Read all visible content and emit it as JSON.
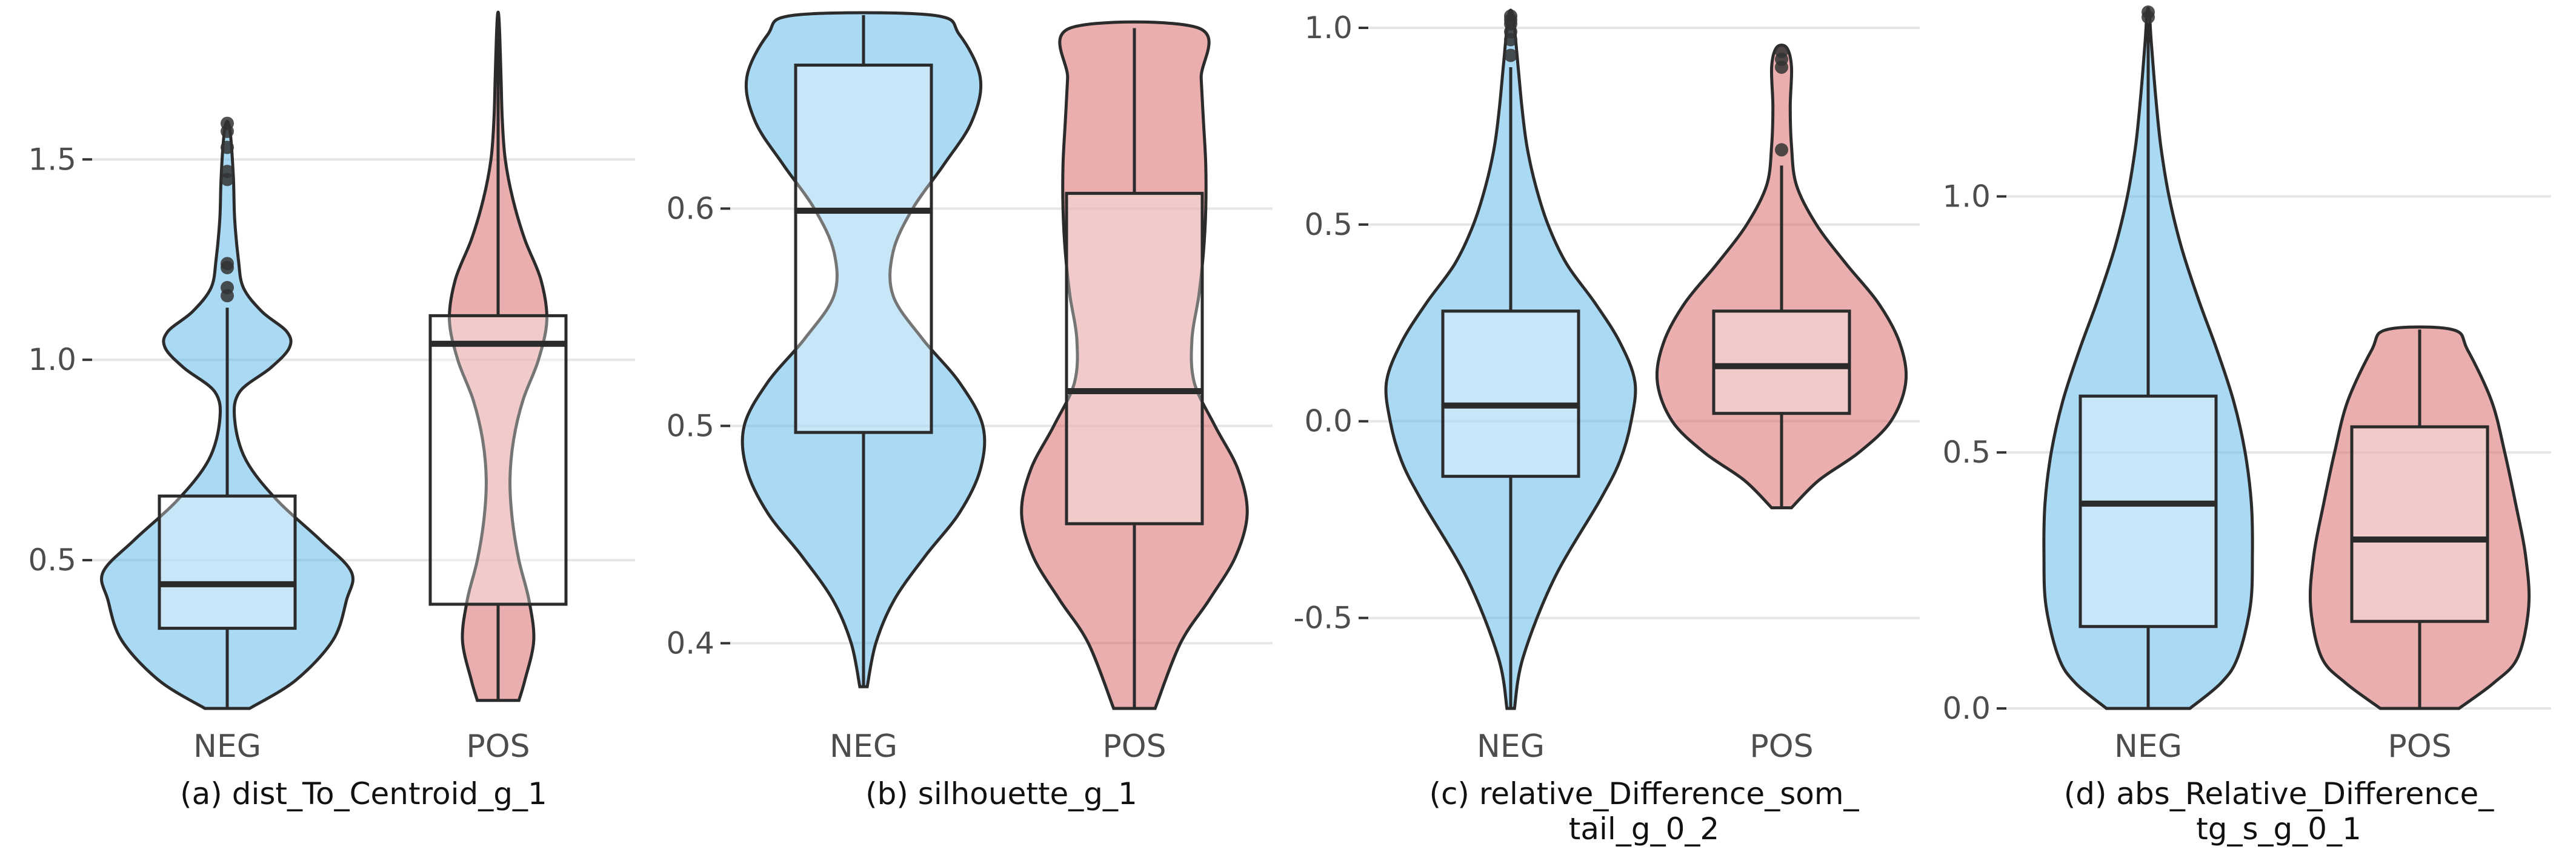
{
  "colors": {
    "neg": "#56B4E9",
    "pos": "#D55E5E",
    "outline": "#2b2b2b",
    "grid": "#e6e6e6",
    "box_fill": "#ffffff"
  },
  "chart_data": [
    {
      "type": "violin",
      "caption_lines": [
        "(a) dist_To_Centroid_g_1"
      ],
      "categories": [
        "NEG",
        "POS"
      ],
      "ylim": [
        0.13,
        1.86
      ],
      "yticks": [
        0.5,
        1.0,
        1.5
      ],
      "ytick_labels": [
        "0.5",
        "1.0",
        "1.5"
      ],
      "grid": true,
      "series": [
        {
          "category": "NEG",
          "box": {
            "q1": 0.33,
            "median": 0.44,
            "q3": 0.66,
            "whisker_low": 0.13,
            "whisker_high": 1.13
          },
          "outliers": [
            1.16,
            1.18,
            1.23,
            1.24,
            1.45,
            1.47,
            1.53,
            1.57,
            1.59
          ],
          "density": {
            "y": [
              0.13,
              0.2,
              0.3,
              0.4,
              0.47,
              0.55,
              0.65,
              0.75,
              0.85,
              0.92,
              0.98,
              1.03,
              1.07,
              1.12,
              1.18,
              1.25,
              1.35,
              1.45,
              1.55,
              1.59
            ],
            "w": [
              0.18,
              0.55,
              0.85,
              0.96,
              1.0,
              0.75,
              0.4,
              0.15,
              0.06,
              0.1,
              0.35,
              0.5,
              0.48,
              0.28,
              0.13,
              0.09,
              0.06,
              0.05,
              0.03,
              0.01
            ]
          }
        },
        {
          "category": "POS",
          "box": {
            "q1": 0.39,
            "median": 1.04,
            "q3": 1.11,
            "whisker_low": 0.15,
            "whisker_high": 1.86
          },
          "outliers": [],
          "density": {
            "y": [
              0.15,
              0.2,
              0.3,
              0.4,
              0.5,
              0.6,
              0.7,
              0.8,
              0.9,
              1.0,
              1.1,
              1.2,
              1.3,
              1.4,
              1.5,
              1.6,
              1.7,
              1.8,
              1.86
            ],
            "w": [
              0.35,
              0.45,
              0.6,
              0.52,
              0.35,
              0.24,
              0.2,
              0.26,
              0.42,
              0.68,
              0.82,
              0.72,
              0.45,
              0.25,
              0.12,
              0.07,
              0.05,
              0.03,
              0.01
            ]
          }
        }
      ]
    },
    {
      "type": "violin",
      "caption_lines": [
        "(b) silhouette_g_1"
      ],
      "categories": [
        "NEG",
        "POS"
      ],
      "ylim": [
        0.37,
        0.689
      ],
      "yticks": [
        0.4,
        0.5,
        0.6
      ],
      "ytick_labels": [
        "0.4",
        "0.5",
        "0.6"
      ],
      "grid": true,
      "series": [
        {
          "category": "NEG",
          "box": {
            "q1": 0.497,
            "median": 0.599,
            "q3": 0.666,
            "whisker_low": 0.38,
            "whisker_high": 0.689
          },
          "outliers": [],
          "density": {
            "y": [
              0.38,
              0.4,
              0.42,
              0.44,
              0.46,
              0.48,
              0.5,
              0.52,
              0.54,
              0.56,
              0.58,
              0.6,
              0.62,
              0.64,
              0.66,
              0.68,
              0.689
            ],
            "w": [
              0.03,
              0.1,
              0.25,
              0.5,
              0.78,
              0.95,
              0.97,
              0.78,
              0.48,
              0.24,
              0.24,
              0.4,
              0.65,
              0.88,
              0.95,
              0.78,
              0.56
            ]
          }
        },
        {
          "category": "POS",
          "box": {
            "q1": 0.455,
            "median": 0.516,
            "q3": 0.607,
            "whisker_low": 0.37,
            "whisker_high": 0.683
          },
          "outliers": [],
          "density": {
            "y": [
              0.37,
              0.4,
              0.42,
              0.44,
              0.46,
              0.48,
              0.5,
              0.52,
              0.54,
              0.56,
              0.58,
              0.6,
              0.62,
              0.64,
              0.66,
              0.683
            ],
            "w": [
              0.18,
              0.4,
              0.65,
              0.88,
              0.98,
              0.9,
              0.7,
              0.52,
              0.5,
              0.56,
              0.6,
              0.62,
              0.62,
              0.6,
              0.58,
              0.56
            ]
          }
        }
      ]
    },
    {
      "type": "violin",
      "caption_lines": [
        "(c) relative_Difference_som_",
        "tail_g_0_2"
      ],
      "categories": [
        "NEG",
        "POS"
      ],
      "ylim": [
        -0.73,
        1.04
      ],
      "yticks": [
        -0.5,
        0.0,
        0.5,
        1.0
      ],
      "ytick_labels": [
        "-0.5",
        "0.0",
        "0.5",
        "1.0"
      ],
      "grid": true,
      "series": [
        {
          "category": "NEG",
          "box": {
            "q1": -0.14,
            "median": 0.04,
            "q3": 0.28,
            "whisker_low": -0.73,
            "whisker_high": 0.9
          },
          "outliers": [
            0.93,
            0.97,
            0.99,
            1.01,
            1.02,
            1.03
          ],
          "density": {
            "y": [
              -0.73,
              -0.6,
              -0.4,
              -0.2,
              -0.1,
              0.0,
              0.1,
              0.2,
              0.3,
              0.4,
              0.5,
              0.6,
              0.7,
              0.8,
              0.9,
              1.0,
              1.04
            ],
            "w": [
              0.03,
              0.1,
              0.35,
              0.72,
              0.88,
              0.97,
              1.0,
              0.88,
              0.68,
              0.45,
              0.3,
              0.2,
              0.13,
              0.09,
              0.06,
              0.03,
              0.01
            ]
          }
        },
        {
          "category": "POS",
          "box": {
            "q1": 0.02,
            "median": 0.14,
            "q3": 0.28,
            "whisker_low": -0.22,
            "whisker_high": 0.65
          },
          "outliers": [
            0.69,
            0.9,
            0.92,
            0.94
          ],
          "density": {
            "y": [
              -0.22,
              -0.15,
              -0.08,
              0.0,
              0.1,
              0.2,
              0.3,
              0.4,
              0.5,
              0.6,
              0.7,
              0.8,
              0.9,
              0.95
            ],
            "w": [
              0.08,
              0.3,
              0.62,
              0.88,
              1.0,
              0.95,
              0.78,
              0.52,
              0.28,
              0.12,
              0.08,
              0.07,
              0.08,
              0.04
            ]
          }
        }
      ]
    },
    {
      "type": "violin",
      "caption_lines": [
        "(d) abs_Relative_Difference_",
        "tg_s_g_0_1"
      ],
      "categories": [
        "NEG",
        "POS"
      ],
      "ylim": [
        0.0,
        1.36
      ],
      "yticks": [
        0.0,
        0.5,
        1.0
      ],
      "ytick_labels": [
        "0.0",
        "0.5",
        "1.0"
      ],
      "grid": true,
      "series": [
        {
          "category": "NEG",
          "box": {
            "q1": 0.16,
            "median": 0.4,
            "q3": 0.61,
            "whisker_low": 0.0,
            "whisker_high": 1.34
          },
          "outliers": [
            1.35,
            1.36
          ],
          "density": {
            "y": [
              0.0,
              0.05,
              0.1,
              0.2,
              0.3,
              0.4,
              0.5,
              0.6,
              0.7,
              0.8,
              0.9,
              1.0,
              1.1,
              1.2,
              1.3,
              1.36
            ],
            "w": [
              0.4,
              0.7,
              0.86,
              0.98,
              1.0,
              0.99,
              0.93,
              0.82,
              0.66,
              0.48,
              0.32,
              0.2,
              0.12,
              0.07,
              0.03,
              0.01
            ]
          }
        },
        {
          "category": "POS",
          "box": {
            "q1": 0.17,
            "median": 0.33,
            "q3": 0.55,
            "whisker_low": 0.0,
            "whisker_high": 0.74
          },
          "outliers": [],
          "density": {
            "y": [
              0.0,
              0.05,
              0.1,
              0.2,
              0.3,
              0.4,
              0.5,
              0.6,
              0.7,
              0.74
            ],
            "w": [
              0.36,
              0.68,
              0.9,
              1.0,
              0.97,
              0.88,
              0.78,
              0.66,
              0.44,
              0.3
            ]
          }
        }
      ]
    }
  ]
}
